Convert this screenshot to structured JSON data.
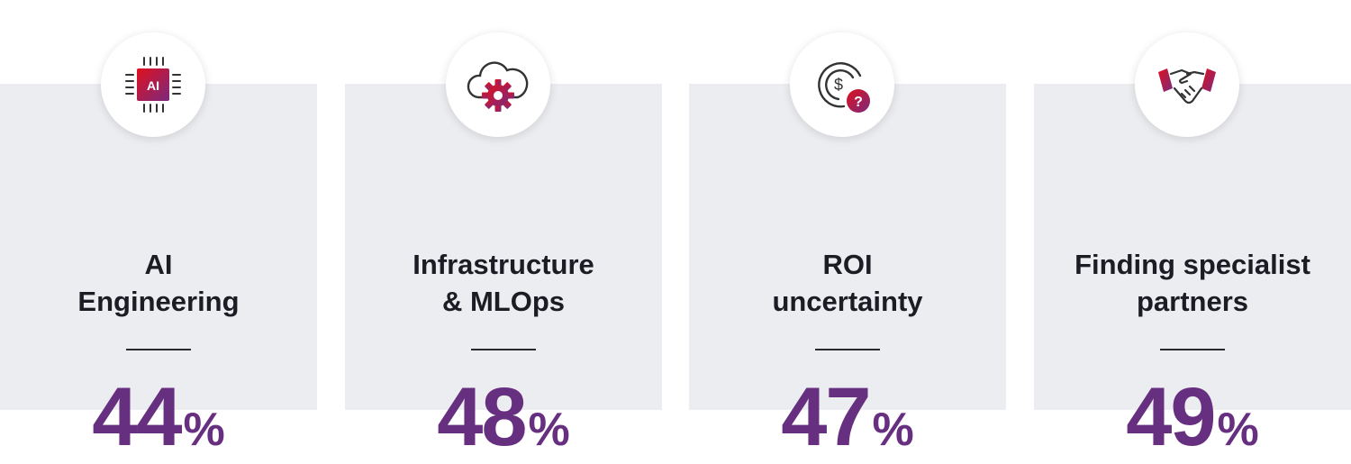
{
  "colors": {
    "accent": "#672f80",
    "red": "#d4002a",
    "card_bg": "#ecedf0"
  },
  "cards": [
    {
      "icon": "ai-chip-icon",
      "title_line1": "AI",
      "title_line2": "Engineering",
      "value": "44",
      "unit": "%"
    },
    {
      "icon": "cloud-gear-icon",
      "title_line1": "Infrastructure",
      "title_line2": "& MLOps",
      "value": "48",
      "unit": "%"
    },
    {
      "icon": "dollar-question-icon",
      "title_line1": "ROI",
      "title_line2": "uncertainty",
      "value": "47",
      "unit": "%"
    },
    {
      "icon": "handshake-icon",
      "title_line1": "Finding specialist",
      "title_line2": "partners",
      "value": "49",
      "unit": "%"
    }
  ],
  "chip_label": "AI"
}
